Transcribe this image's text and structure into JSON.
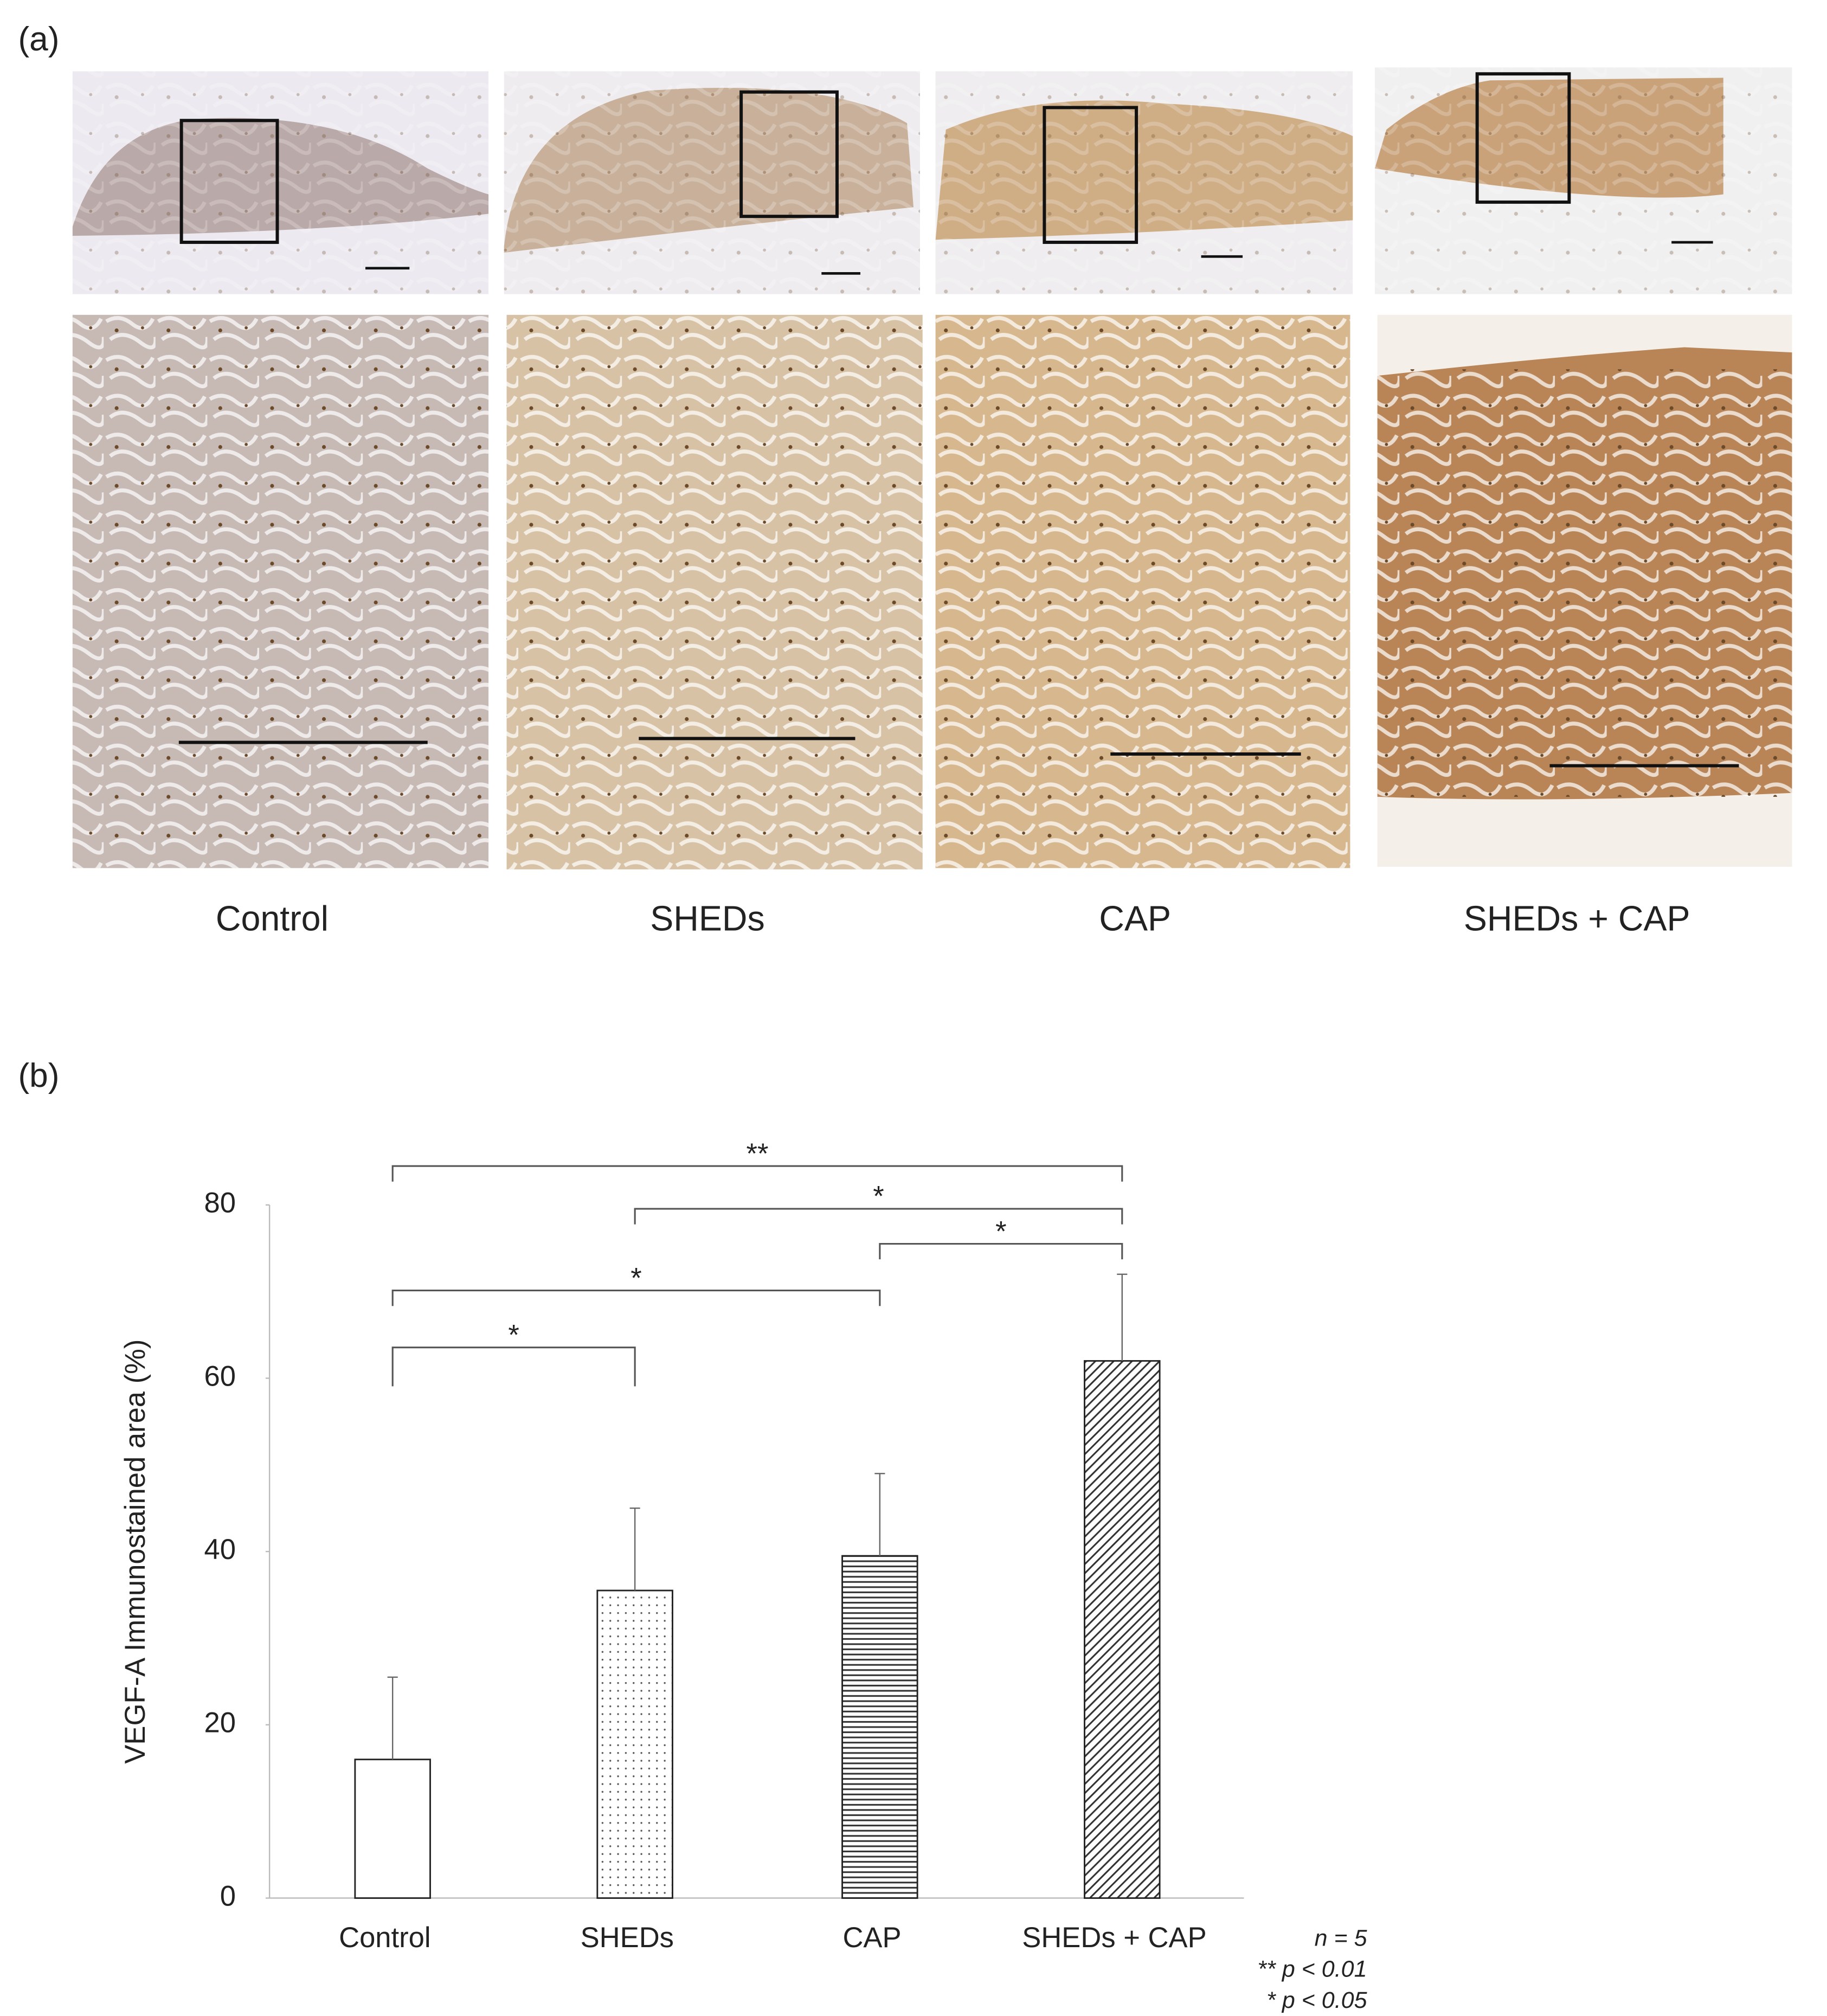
{
  "panel_a": {
    "label": "(a)",
    "groups": [
      "Control",
      "SHEDs",
      "CAP",
      "SHEDs + CAP"
    ]
  },
  "panel_b_label": "(b)",
  "chart_data": {
    "type": "bar",
    "ylabel": "VEGF-A  Immunostained area  (%)",
    "categories": [
      "Control",
      "SHEDs",
      "CAP",
      "SHEDs + CAP"
    ],
    "values": [
      16,
      35.5,
      39.5,
      62
    ],
    "errors": [
      9.5,
      9.5,
      9.5,
      10
    ],
    "patterns": [
      "none",
      "dots",
      "horizontal",
      "diagonal"
    ],
    "color": "#222222",
    "ylim": [
      0,
      80
    ],
    "yticks": [
      0,
      20,
      40,
      60,
      80
    ],
    "significance": [
      {
        "from": 0,
        "to": 3,
        "label": "**"
      },
      {
        "from": 1,
        "to": 3,
        "label": "*"
      },
      {
        "from": 2,
        "to": 3,
        "label": "*"
      },
      {
        "from": 0,
        "to": 2,
        "label": "*"
      },
      {
        "from": 0,
        "to": 1,
        "label": "*"
      }
    ],
    "notes": [
      "n = 5",
      "** p < 0.01",
      "* p < 0.05"
    ]
  }
}
